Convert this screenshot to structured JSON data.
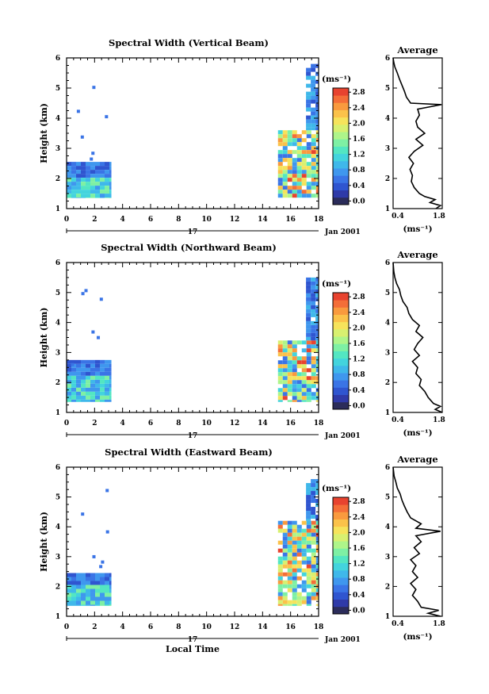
{
  "colors": {
    "scale": [
      "#2b2c5a",
      "#2f3aa8",
      "#2f55d0",
      "#3a74e6",
      "#3f97ee",
      "#3fb8ea",
      "#43d4dd",
      "#53e6c2",
      "#7ef0a4",
      "#aef58a",
      "#d8f070",
      "#f6e35b",
      "#fbc24a",
      "#f99a3e",
      "#f46e38",
      "#e8432f"
    ],
    "axis": "#000000"
  },
  "chart_data": [
    {
      "type": "heatmap",
      "title": "Spectral Width (Vertical Beam)",
      "xlabel": "",
      "ylabel": "Height (km)",
      "xlim": [
        0,
        18
      ],
      "ylim": [
        1,
        6
      ],
      "x_ticks": [
        "0",
        "2",
        "4",
        "6",
        "8",
        "10",
        "12",
        "14",
        "16",
        "18"
      ],
      "y_ticks": [
        "1",
        "2",
        "3",
        "4",
        "5",
        "6"
      ],
      "date_day": "17",
      "date_label": "Jan 2001",
      "colorbar": {
        "unit": "(ms⁻¹)",
        "ticks": [
          "0.0",
          "0.4",
          "0.8",
          "1.2",
          "1.6",
          "2.0",
          "2.4",
          "2.8"
        ],
        "range": [
          0,
          3.0
        ]
      },
      "data_blocks": [
        {
          "t": [
            0,
            3.2
          ],
          "h": [
            1.35,
            2.55
          ],
          "level": "low"
        },
        {
          "t": [
            15.1,
            18
          ],
          "h": [
            1.35,
            3.6
          ],
          "level": "high"
        },
        {
          "t": [
            17.1,
            18
          ],
          "h": [
            3.6,
            5.8
          ],
          "level": "mid"
        }
      ],
      "average": {
        "title": "Average",
        "xlabel": "(ms⁻¹)",
        "xlim": [
          0.4,
          1.8
        ],
        "x_ticks": [
          "0.4",
          "1.8"
        ],
        "y_ticks": [
          "1",
          "2",
          "3",
          "4",
          "5",
          "6"
        ],
        "profile": [
          [
            1.0,
            1.62
          ],
          [
            1.1,
            1.75
          ],
          [
            1.2,
            1.45
          ],
          [
            1.3,
            1.6
          ],
          [
            1.4,
            1.3
          ],
          [
            1.5,
            1.15
          ],
          [
            1.7,
            1.0
          ],
          [
            1.9,
            0.92
          ],
          [
            2.1,
            0.95
          ],
          [
            2.3,
            0.88
          ],
          [
            2.5,
            0.98
          ],
          [
            2.7,
            0.85
          ],
          [
            2.9,
            1.0
          ],
          [
            3.1,
            1.25
          ],
          [
            3.3,
            1.05
          ],
          [
            3.5,
            1.3
          ],
          [
            3.7,
            1.1
          ],
          [
            3.9,
            1.05
          ],
          [
            4.1,
            1.15
          ],
          [
            4.3,
            1.1
          ],
          [
            4.45,
            1.78
          ],
          [
            4.5,
            0.9
          ],
          [
            4.7,
            0.78
          ],
          [
            4.9,
            0.72
          ],
          [
            5.1,
            0.65
          ],
          [
            5.3,
            0.58
          ],
          [
            5.5,
            0.52
          ],
          [
            5.7,
            0.45
          ],
          [
            5.85,
            0.42
          ],
          [
            6.0,
            0.4
          ]
        ]
      }
    },
    {
      "type": "heatmap",
      "title": "Spectral Width (Northward Beam)",
      "xlabel": "",
      "ylabel": "Height (km)",
      "xlim": [
        0,
        18
      ],
      "ylim": [
        1,
        6
      ],
      "x_ticks": [
        "0",
        "2",
        "4",
        "6",
        "8",
        "10",
        "12",
        "14",
        "16",
        "18"
      ],
      "y_ticks": [
        "1",
        "2",
        "3",
        "4",
        "5",
        "6"
      ],
      "date_day": "17",
      "date_label": "Jan 2001",
      "colorbar": {
        "unit": "(ms⁻¹)",
        "ticks": [
          "0.0",
          "0.4",
          "0.8",
          "1.2",
          "1.6",
          "2.0",
          "2.4",
          "2.8"
        ],
        "range": [
          0,
          3.0
        ]
      },
      "data_blocks": [
        {
          "t": [
            0,
            3.2
          ],
          "h": [
            1.35,
            2.75
          ],
          "level": "low"
        },
        {
          "t": [
            15.1,
            18
          ],
          "h": [
            1.35,
            3.4
          ],
          "level": "high"
        },
        {
          "t": [
            17.1,
            18
          ],
          "h": [
            3.4,
            5.5
          ],
          "level": "mid"
        }
      ],
      "average": {
        "title": "Average",
        "xlabel": "(ms⁻¹)",
        "xlim": [
          0.4,
          1.8
        ],
        "x_ticks": [
          "0.4",
          "1.8"
        ],
        "y_ticks": [
          "1",
          "2",
          "3",
          "4",
          "5",
          "6"
        ],
        "profile": [
          [
            1.0,
            1.8
          ],
          [
            1.1,
            1.6
          ],
          [
            1.2,
            1.75
          ],
          [
            1.3,
            1.55
          ],
          [
            1.5,
            1.4
          ],
          [
            1.7,
            1.3
          ],
          [
            1.9,
            1.15
          ],
          [
            2.1,
            1.2
          ],
          [
            2.3,
            1.05
          ],
          [
            2.5,
            1.1
          ],
          [
            2.7,
            0.95
          ],
          [
            2.9,
            1.15
          ],
          [
            3.1,
            1.0
          ],
          [
            3.3,
            1.1
          ],
          [
            3.5,
            1.25
          ],
          [
            3.7,
            1.05
          ],
          [
            3.9,
            1.15
          ],
          [
            4.1,
            0.95
          ],
          [
            4.3,
            0.85
          ],
          [
            4.5,
            0.8
          ],
          [
            4.7,
            0.68
          ],
          [
            4.9,
            0.62
          ],
          [
            5.1,
            0.58
          ],
          [
            5.3,
            0.5
          ],
          [
            5.5,
            0.45
          ],
          [
            5.7,
            0.42
          ],
          [
            6.0,
            0.4
          ]
        ]
      }
    },
    {
      "type": "heatmap",
      "title": "Spectral Width (Eastward Beam)",
      "xlabel": "Local Time",
      "ylabel": "Height (km)",
      "xlim": [
        0,
        18
      ],
      "ylim": [
        1,
        6
      ],
      "x_ticks": [
        "0",
        "2",
        "4",
        "6",
        "8",
        "10",
        "12",
        "14",
        "16",
        "18"
      ],
      "y_ticks": [
        "1",
        "2",
        "3",
        "4",
        "5",
        "6"
      ],
      "date_day": "17",
      "date_label": "Jan 2001",
      "colorbar": {
        "unit": "(ms⁻¹)",
        "ticks": [
          "0.0",
          "0.4",
          "0.8",
          "1.2",
          "1.6",
          "2.0",
          "2.4",
          "2.8"
        ],
        "range": [
          0,
          3.0
        ]
      },
      "data_blocks": [
        {
          "t": [
            0,
            3.2
          ],
          "h": [
            1.35,
            2.45
          ],
          "level": "low"
        },
        {
          "t": [
            15.1,
            18
          ],
          "h": [
            1.35,
            4.2
          ],
          "level": "high"
        },
        {
          "t": [
            17.1,
            18
          ],
          "h": [
            4.2,
            5.6
          ],
          "level": "mid"
        }
      ],
      "average": {
        "title": "Average",
        "xlabel": "(ms⁻¹)",
        "xlim": [
          0.4,
          1.8
        ],
        "x_ticks": [
          "0.4",
          "1.8"
        ],
        "y_ticks": [
          "1",
          "2",
          "3",
          "4",
          "5",
          "6"
        ],
        "profile": [
          [
            1.0,
            1.75
          ],
          [
            1.1,
            1.4
          ],
          [
            1.2,
            1.7
          ],
          [
            1.3,
            1.2
          ],
          [
            1.5,
            1.1
          ],
          [
            1.7,
            0.95
          ],
          [
            1.9,
            1.05
          ],
          [
            2.1,
            0.9
          ],
          [
            2.3,
            1.1
          ],
          [
            2.5,
            0.95
          ],
          [
            2.7,
            1.05
          ],
          [
            2.9,
            0.9
          ],
          [
            3.1,
            1.15
          ],
          [
            3.3,
            1.0
          ],
          [
            3.5,
            1.2
          ],
          [
            3.7,
            1.05
          ],
          [
            3.85,
            1.75
          ],
          [
            3.95,
            1.05
          ],
          [
            4.1,
            1.2
          ],
          [
            4.3,
            0.9
          ],
          [
            4.5,
            0.8
          ],
          [
            4.7,
            0.72
          ],
          [
            4.9,
            0.65
          ],
          [
            5.1,
            0.6
          ],
          [
            5.3,
            0.52
          ],
          [
            5.5,
            0.48
          ],
          [
            5.7,
            0.43
          ],
          [
            6.0,
            0.4
          ]
        ]
      }
    }
  ]
}
